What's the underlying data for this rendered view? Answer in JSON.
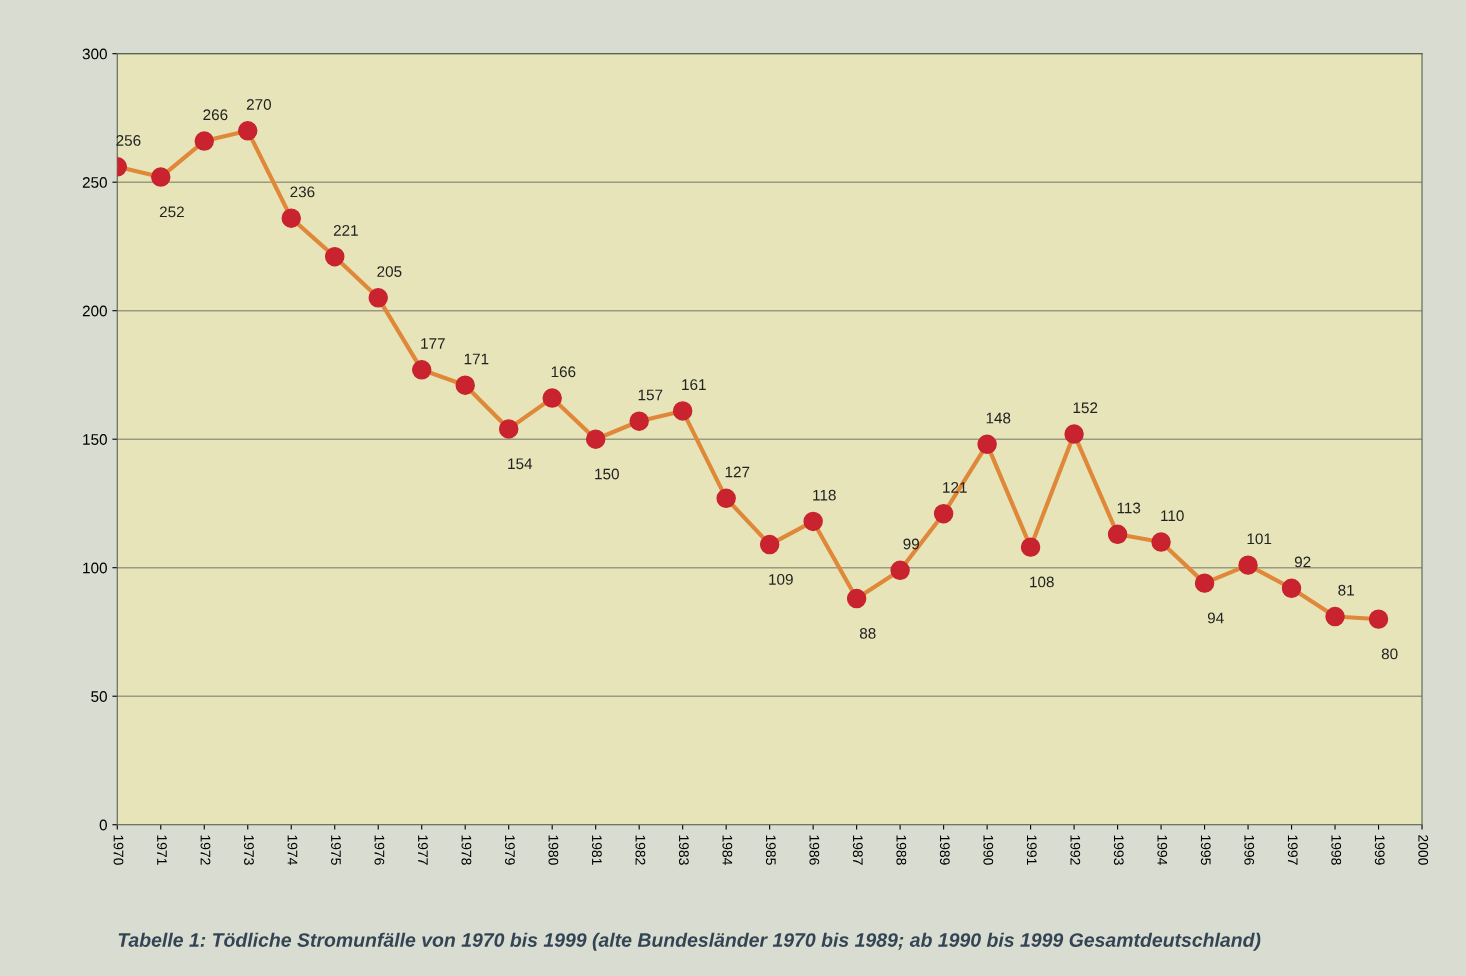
{
  "chart_data": {
    "type": "line",
    "x": [
      1970,
      1971,
      1972,
      1973,
      1974,
      1975,
      1976,
      1977,
      1978,
      1979,
      1980,
      1981,
      1982,
      1983,
      1984,
      1985,
      1986,
      1987,
      1988,
      1989,
      1990,
      1991,
      1992,
      1993,
      1994,
      1995,
      1996,
      1997,
      1998,
      1999
    ],
    "series": [
      {
        "color": "#c8232e",
        "values": [
          256,
          252,
          266,
          270,
          236,
          221,
          205,
          177,
          171,
          154,
          166,
          150,
          157,
          161,
          127,
          109,
          118,
          88,
          99,
          121,
          148,
          108,
          152,
          113,
          110,
          94,
          101,
          92,
          81,
          80
        ]
      }
    ],
    "xlim": [
      1970,
      2000
    ],
    "xticks": [
      1970,
      1971,
      1972,
      1973,
      1974,
      1975,
      1976,
      1977,
      1978,
      1979,
      1980,
      1981,
      1982,
      1983,
      1984,
      1985,
      1986,
      1987,
      1988,
      1989,
      1990,
      1991,
      1992,
      1993,
      1994,
      1995,
      1996,
      1997,
      1998,
      1999,
      2000
    ],
    "ylim": [
      0,
      300
    ],
    "yticks": [
      0,
      50,
      100,
      150,
      200,
      250,
      300
    ],
    "grid": "y",
    "marker": "circle",
    "line_style": "solid",
    "data_labels": true,
    "annotations": [
      "Tabelle 1: Tödliche Stromunfälle von 1970 bis 1999 (alte Bundesländer 1970 bis 1989; ab 1990 bis 1999 Gesamtdeutschland)"
    ]
  }
}
